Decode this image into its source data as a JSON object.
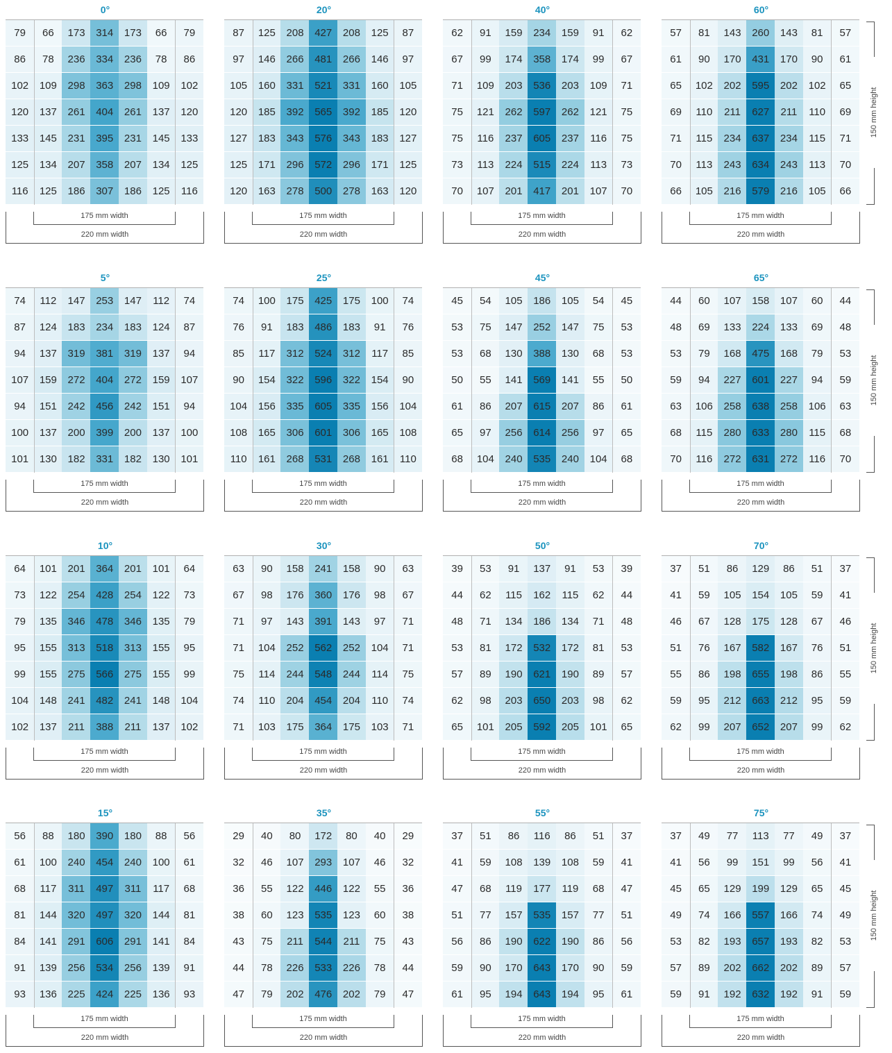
{
  "chart_data": {
    "type": "heatmap",
    "colors": [
      "#ffffff",
      "#ddeef5",
      "#9ad0e2",
      "#45a7cc",
      "#0a7fb1"
    ],
    "dimension_labels": {
      "width_inner": "175 mm width",
      "width_outer": "220 mm width",
      "height": "150 mm height"
    },
    "panels": [
      {
        "angle": "0°",
        "rows": [
          [
            79,
            66,
            173,
            314,
            173,
            66,
            79
          ],
          [
            86,
            78,
            236,
            334,
            236,
            78,
            86
          ],
          [
            102,
            109,
            298,
            363,
            298,
            109,
            102
          ],
          [
            120,
            137,
            261,
            404,
            261,
            137,
            120
          ],
          [
            133,
            145,
            231,
            395,
            231,
            145,
            133
          ],
          [
            125,
            134,
            207,
            358,
            207,
            134,
            125
          ],
          [
            116,
            125,
            186,
            307,
            186,
            125,
            116
          ]
        ]
      },
      {
        "angle": "20°",
        "rows": [
          [
            87,
            125,
            208,
            427,
            208,
            125,
            87
          ],
          [
            97,
            146,
            266,
            481,
            266,
            146,
            97
          ],
          [
            105,
            160,
            331,
            521,
            331,
            160,
            105
          ],
          [
            120,
            185,
            392,
            565,
            392,
            185,
            120
          ],
          [
            127,
            183,
            343,
            576,
            343,
            183,
            127
          ],
          [
            125,
            171,
            296,
            572,
            296,
            171,
            125
          ],
          [
            120,
            163,
            278,
            500,
            278,
            163,
            120
          ]
        ]
      },
      {
        "angle": "40°",
        "rows": [
          [
            62,
            91,
            159,
            234,
            159,
            91,
            62
          ],
          [
            67,
            99,
            174,
            358,
            174,
            99,
            67
          ],
          [
            71,
            109,
            203,
            536,
            203,
            109,
            71
          ],
          [
            75,
            121,
            262,
            597,
            262,
            121,
            75
          ],
          [
            75,
            116,
            237,
            605,
            237,
            116,
            75
          ],
          [
            73,
            113,
            224,
            515,
            224,
            113,
            73
          ],
          [
            70,
            107,
            201,
            417,
            201,
            107,
            70
          ]
        ]
      },
      {
        "angle": "60°",
        "rows": [
          [
            57,
            81,
            143,
            260,
            143,
            81,
            57
          ],
          [
            61,
            90,
            170,
            431,
            170,
            90,
            61
          ],
          [
            65,
            102,
            202,
            595,
            202,
            102,
            65
          ],
          [
            69,
            110,
            211,
            627,
            211,
            110,
            69
          ],
          [
            71,
            115,
            234,
            637,
            234,
            115,
            71
          ],
          [
            70,
            113,
            243,
            634,
            243,
            113,
            70
          ],
          [
            66,
            105,
            216,
            579,
            216,
            105,
            66
          ]
        ]
      },
      {
        "angle": "5°",
        "rows": [
          [
            74,
            112,
            147,
            253,
            147,
            112,
            74
          ],
          [
            87,
            124,
            183,
            234,
            183,
            124,
            87
          ],
          [
            94,
            137,
            319,
            381,
            319,
            137,
            94
          ],
          [
            107,
            159,
            272,
            404,
            272,
            159,
            107
          ],
          [
            94,
            151,
            242,
            456,
            242,
            151,
            94
          ],
          [
            100,
            137,
            200,
            399,
            200,
            137,
            100
          ],
          [
            101,
            130,
            182,
            331,
            182,
            130,
            101
          ]
        ]
      },
      {
        "angle": "25°",
        "rows": [
          [
            74,
            100,
            175,
            425,
            175,
            100,
            74
          ],
          [
            76,
            91,
            183,
            486,
            183,
            91,
            76
          ],
          [
            85,
            117,
            312,
            524,
            312,
            117,
            85
          ],
          [
            90,
            154,
            322,
            596,
            322,
            154,
            90
          ],
          [
            104,
            156,
            335,
            605,
            335,
            156,
            104
          ],
          [
            108,
            165,
            306,
            601,
            306,
            165,
            108
          ],
          [
            110,
            161,
            268,
            531,
            268,
            161,
            110
          ]
        ]
      },
      {
        "angle": "45°",
        "rows": [
          [
            45,
            54,
            105,
            186,
            105,
            54,
            45
          ],
          [
            53,
            75,
            147,
            252,
            147,
            75,
            53
          ],
          [
            53,
            68,
            130,
            388,
            130,
            68,
            53
          ],
          [
            50,
            55,
            141,
            569,
            141,
            55,
            50
          ],
          [
            61,
            86,
            207,
            615,
            207,
            86,
            61
          ],
          [
            65,
            97,
            256,
            614,
            256,
            97,
            65
          ],
          [
            68,
            104,
            240,
            535,
            240,
            104,
            68
          ]
        ]
      },
      {
        "angle": "65°",
        "rows": [
          [
            44,
            60,
            107,
            158,
            107,
            60,
            44
          ],
          [
            48,
            69,
            133,
            224,
            133,
            69,
            48
          ],
          [
            53,
            79,
            168,
            475,
            168,
            79,
            53
          ],
          [
            59,
            94,
            227,
            601,
            227,
            94,
            59
          ],
          [
            63,
            106,
            258,
            638,
            258,
            106,
            63
          ],
          [
            68,
            115,
            280,
            633,
            280,
            115,
            68
          ],
          [
            70,
            116,
            272,
            631,
            272,
            116,
            70
          ]
        ]
      },
      {
        "angle": "10°",
        "rows": [
          [
            64,
            101,
            201,
            364,
            201,
            101,
            64
          ],
          [
            73,
            122,
            254,
            428,
            254,
            122,
            73
          ],
          [
            79,
            135,
            346,
            478,
            346,
            135,
            79
          ],
          [
            95,
            155,
            313,
            518,
            313,
            155,
            95
          ],
          [
            99,
            155,
            275,
            566,
            275,
            155,
            99
          ],
          [
            104,
            148,
            241,
            482,
            241,
            148,
            104
          ],
          [
            102,
            137,
            211,
            388,
            211,
            137,
            102
          ]
        ]
      },
      {
        "angle": "30°",
        "rows": [
          [
            63,
            90,
            158,
            241,
            158,
            90,
            63
          ],
          [
            67,
            98,
            176,
            360,
            176,
            98,
            67
          ],
          [
            71,
            97,
            143,
            391,
            143,
            97,
            71
          ],
          [
            71,
            104,
            252,
            562,
            252,
            104,
            71
          ],
          [
            75,
            114,
            244,
            548,
            244,
            114,
            75
          ],
          [
            74,
            110,
            204,
            454,
            204,
            110,
            74
          ],
          [
            71,
            103,
            175,
            364,
            175,
            103,
            71
          ]
        ]
      },
      {
        "angle": "50°",
        "rows": [
          [
            39,
            53,
            91,
            137,
            91,
            53,
            39
          ],
          [
            44,
            62,
            115,
            162,
            115,
            62,
            44
          ],
          [
            48,
            71,
            134,
            186,
            134,
            71,
            48
          ],
          [
            53,
            81,
            172,
            532,
            172,
            81,
            53
          ],
          [
            57,
            89,
            190,
            621,
            190,
            89,
            57
          ],
          [
            62,
            98,
            203,
            650,
            203,
            98,
            62
          ],
          [
            65,
            101,
            205,
            592,
            205,
            101,
            65
          ]
        ]
      },
      {
        "angle": "70°",
        "rows": [
          [
            37,
            51,
            86,
            129,
            86,
            51,
            37
          ],
          [
            41,
            59,
            105,
            154,
            105,
            59,
            41
          ],
          [
            46,
            67,
            128,
            175,
            128,
            67,
            46
          ],
          [
            51,
            76,
            167,
            582,
            167,
            76,
            51
          ],
          [
            55,
            86,
            198,
            655,
            198,
            86,
            55
          ],
          [
            59,
            95,
            212,
            663,
            212,
            95,
            59
          ],
          [
            62,
            99,
            207,
            652,
            207,
            99,
            62
          ]
        ]
      },
      {
        "angle": "15°",
        "rows": [
          [
            56,
            88,
            180,
            390,
            180,
            88,
            56
          ],
          [
            61,
            100,
            240,
            454,
            240,
            100,
            61
          ],
          [
            68,
            117,
            311,
            497,
            311,
            117,
            68
          ],
          [
            81,
            144,
            320,
            497,
            320,
            144,
            81
          ],
          [
            84,
            141,
            291,
            606,
            291,
            141,
            84
          ],
          [
            91,
            139,
            256,
            534,
            256,
            139,
            91
          ],
          [
            93,
            136,
            225,
            424,
            225,
            136,
            93
          ]
        ]
      },
      {
        "angle": "35°",
        "rows": [
          [
            29,
            40,
            80,
            172,
            80,
            40,
            29
          ],
          [
            32,
            46,
            107,
            293,
            107,
            46,
            32
          ],
          [
            36,
            55,
            122,
            446,
            122,
            55,
            36
          ],
          [
            38,
            60,
            123,
            535,
            123,
            60,
            38
          ],
          [
            43,
            75,
            211,
            544,
            211,
            75,
            43
          ],
          [
            44,
            78,
            226,
            533,
            226,
            78,
            44
          ],
          [
            47,
            79,
            202,
            476,
            202,
            79,
            47
          ]
        ]
      },
      {
        "angle": "55°",
        "rows": [
          [
            37,
            51,
            86,
            116,
            86,
            51,
            37
          ],
          [
            41,
            59,
            108,
            139,
            108,
            59,
            41
          ],
          [
            47,
            68,
            119,
            177,
            119,
            68,
            47
          ],
          [
            51,
            77,
            157,
            535,
            157,
            77,
            51
          ],
          [
            56,
            86,
            190,
            622,
            190,
            86,
            56
          ],
          [
            59,
            90,
            170,
            643,
            170,
            90,
            59
          ],
          [
            61,
            95,
            194,
            643,
            194,
            95,
            61
          ]
        ]
      },
      {
        "angle": "75°",
        "rows": [
          [
            37,
            49,
            77,
            113,
            77,
            49,
            37
          ],
          [
            41,
            56,
            99,
            151,
            99,
            56,
            41
          ],
          [
            45,
            65,
            129,
            199,
            129,
            65,
            45
          ],
          [
            49,
            74,
            166,
            557,
            166,
            74,
            49
          ],
          [
            53,
            82,
            193,
            657,
            193,
            82,
            53
          ],
          [
            57,
            89,
            202,
            662,
            202,
            89,
            57
          ],
          [
            59,
            91,
            192,
            632,
            192,
            91,
            59
          ]
        ]
      }
    ]
  }
}
